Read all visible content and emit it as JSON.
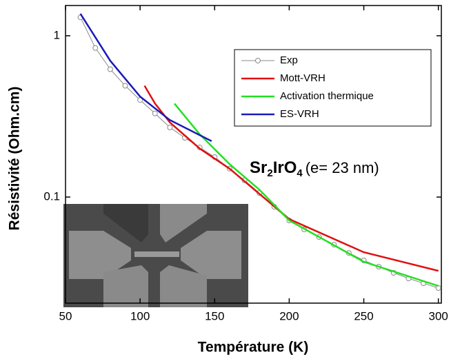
{
  "chart_data": {
    "type": "line",
    "x_label": "Température (K)",
    "y_label": "Résistivité (Ohm.cm)",
    "annotation": {
      "formula": [
        "Sr",
        "2",
        "Ir",
        "O",
        "4"
      ],
      "text": "(e= 23 nm)"
    },
    "xlim": [
      50,
      302
    ],
    "xticks": [
      50,
      100,
      150,
      200,
      250,
      300
    ],
    "ylim": [
      0.022,
      1.54
    ],
    "yticks": [
      0.1,
      1
    ],
    "log_y": true,
    "legend": "upper right",
    "series": [
      {
        "name": "Exp",
        "color": "#888888",
        "marker": "circle",
        "x": [
          60,
          70,
          80,
          90,
          100,
          110,
          120,
          130,
          140,
          150,
          160,
          170,
          180,
          190,
          200,
          210,
          220,
          230,
          240,
          250,
          260,
          270,
          280,
          290,
          300
        ],
        "values": [
          1.3,
          0.84,
          0.62,
          0.49,
          0.4,
          0.33,
          0.27,
          0.233,
          0.203,
          0.177,
          0.15,
          0.127,
          0.106,
          0.087,
          0.0716,
          0.063,
          0.0565,
          0.0507,
          0.045,
          0.0405,
          0.037,
          0.0339,
          0.0313,
          0.0292,
          0.0273
        ]
      },
      {
        "name": "Mott-VRH",
        "color": "#e01010",
        "x": [
          103,
          110,
          120,
          140,
          160,
          200,
          250,
          300
        ],
        "values": [
          0.49,
          0.38,
          0.29,
          0.2,
          0.15,
          0.073,
          0.0455,
          0.0349
        ]
      },
      {
        "name": "Activation thermique",
        "color": "#22e022",
        "x": [
          123,
          140,
          160,
          180,
          200,
          250,
          300
        ],
        "values": [
          0.38,
          0.245,
          0.16,
          0.111,
          0.0716,
          0.0397,
          0.0281
        ]
      },
      {
        "name": "ES-VRH",
        "color": "#1a1ab8",
        "x": [
          60,
          80,
          100,
          120,
          148
        ],
        "values": [
          1.37,
          0.7,
          0.42,
          0.3,
          0.222
        ]
      }
    ]
  }
}
